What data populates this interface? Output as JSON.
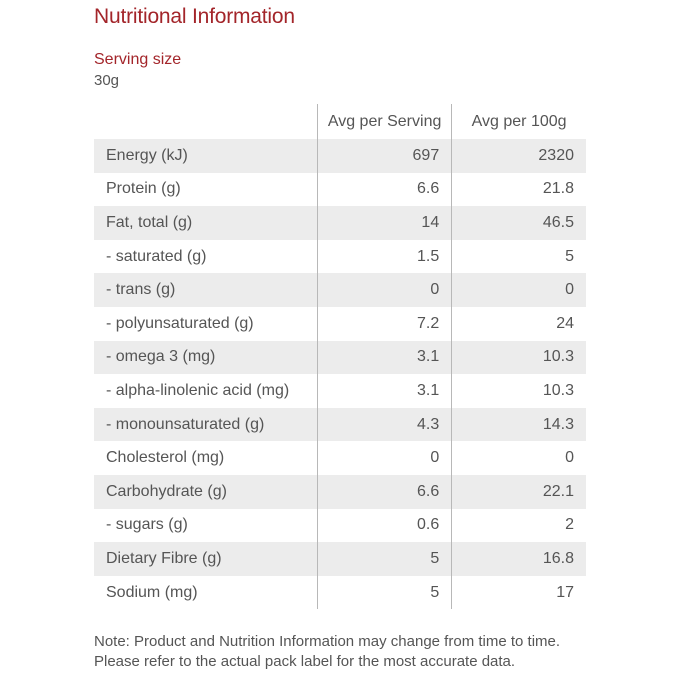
{
  "title": "Nutritional Information",
  "serving": {
    "label": "Serving size",
    "value": "30g"
  },
  "table": {
    "headers": [
      "",
      "Avg per Serving",
      "Avg per 100g"
    ],
    "rows": [
      {
        "nutrient": "Energy (kJ)",
        "per_serving": "697",
        "per_100g": "2320"
      },
      {
        "nutrient": "Protein (g)",
        "per_serving": "6.6",
        "per_100g": "21.8"
      },
      {
        "nutrient": "Fat, total (g)",
        "per_serving": "14",
        "per_100g": "46.5"
      },
      {
        "nutrient": "- saturated (g)",
        "per_serving": "1.5",
        "per_100g": "5"
      },
      {
        "nutrient": "- trans (g)",
        "per_serving": "0",
        "per_100g": "0"
      },
      {
        "nutrient": "- polyunsaturated (g)",
        "per_serving": "7.2",
        "per_100g": "24"
      },
      {
        "nutrient": "- omega 3 (mg)",
        "per_serving": "3.1",
        "per_100g": "10.3"
      },
      {
        "nutrient": "- alpha-linolenic acid (mg)",
        "per_serving": "3.1",
        "per_100g": "10.3"
      },
      {
        "nutrient": "- monounsaturated (g)",
        "per_serving": "4.3",
        "per_100g": "14.3"
      },
      {
        "nutrient": "Cholesterol (mg)",
        "per_serving": "0",
        "per_100g": "0"
      },
      {
        "nutrient": "Carbohydrate (g)",
        "per_serving": "6.6",
        "per_100g": "22.1"
      },
      {
        "nutrient": "- sugars (g)",
        "per_serving": "0.6",
        "per_100g": "2"
      },
      {
        "nutrient": "Dietary Fibre (g)",
        "per_serving": "5",
        "per_100g": "16.8"
      },
      {
        "nutrient": "Sodium (mg)",
        "per_serving": "5",
        "per_100g": "17"
      }
    ]
  },
  "note": "Note: Product and Nutrition Information may change from time to time. Please refer to the actual pack label for the most accurate data.",
  "colors": {
    "heading": "#a3252a",
    "text": "#555555",
    "row_shade": "#ececec",
    "divider": "#b8b8b8"
  }
}
